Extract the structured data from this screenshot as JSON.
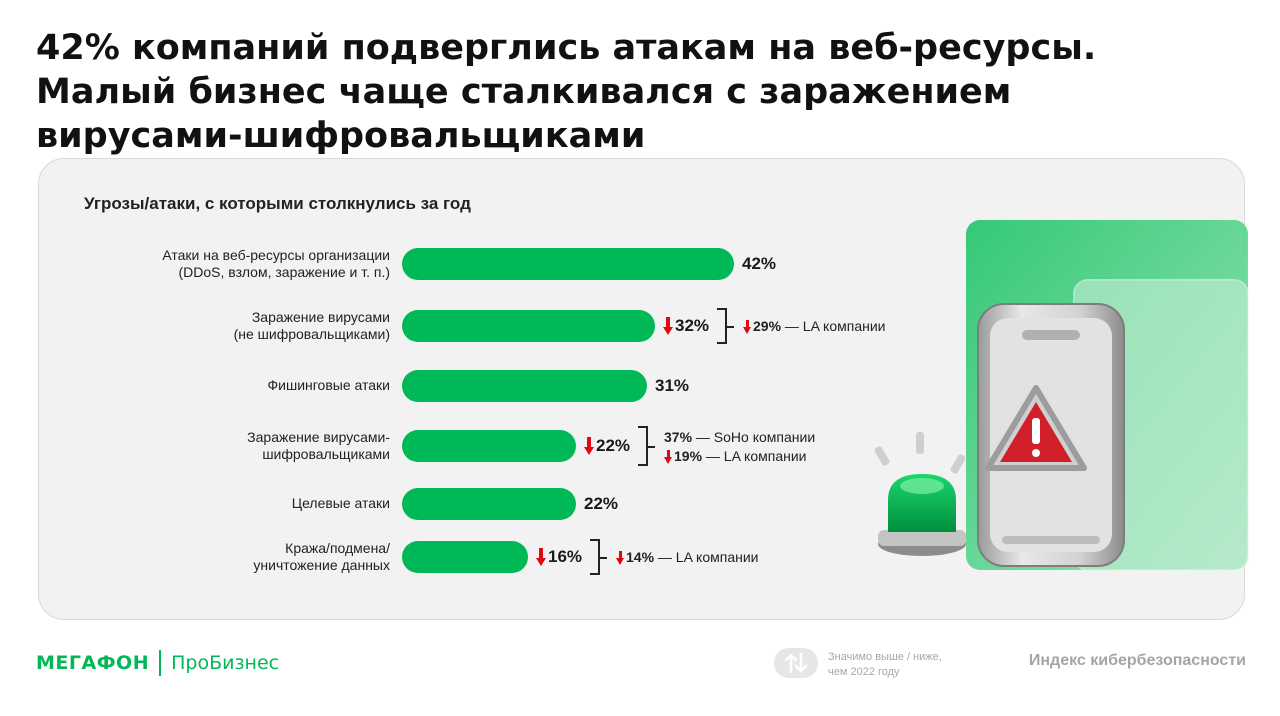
{
  "headline": {
    "line1": "42% компаний подверглись атакам на веб-ресурсы.",
    "line2": "Малый бизнес чаще сталкивался с заражением",
    "line3": "вирусами-шифровальщиками"
  },
  "chart_data": {
    "type": "bar",
    "orientation": "horizontal",
    "title": "Угрозы/атаки, с которыми столкнулись за год",
    "xlim": [
      0,
      42
    ],
    "categories": [
      {
        "line1": "Атаки на веб-ресурсы организации",
        "line2": "(DDoS, взлом, заражение и т. п.)"
      },
      {
        "line1": "Заражение вирусами",
        "line2": "(не шифровальщиками)"
      },
      {
        "line1": "Фишинговые атаки",
        "line2": ""
      },
      {
        "line1": "Заражение вирусами-",
        "line2": "шифровальщиками"
      },
      {
        "line1": "Целевые атаки",
        "line2": ""
      },
      {
        "line1": "Кража/подмена/",
        "line2": "уничтожение данных"
      }
    ],
    "values": [
      42,
      32,
      31,
      22,
      22,
      16
    ],
    "value_labels": [
      "42%",
      "32%",
      "31%",
      "22%",
      "22%",
      "16%"
    ],
    "significantly_lower": [
      false,
      true,
      false,
      true,
      false,
      true
    ],
    "bar_color": "#00b956",
    "down_arrow_color": "#e30613",
    "annotations": [
      {
        "row": 1,
        "items": [
          {
            "value": "29%",
            "text": "— LA компании",
            "down": true
          }
        ]
      },
      {
        "row": 3,
        "items": [
          {
            "value": "37%",
            "text": "— SoHo компании",
            "down": false
          },
          {
            "value": "19%",
            "text": "— LA компании",
            "down": true
          }
        ]
      },
      {
        "row": 5,
        "items": [
          {
            "value": "14%",
            "text": "— LA компании",
            "down": true
          }
        ]
      }
    ]
  },
  "footer": {
    "brand": "МегаФон",
    "product": "ПроБизнес",
    "legend_line1": "Значимо выше / ниже,",
    "legend_line2": "чем 2022 году",
    "index_title": "Индекс кибербезопасности",
    "brand_color": "#00b956"
  },
  "icons": {
    "illustration": "alarm-beacon-phone-warning-icon",
    "legend": "up-down-arrows-icon"
  }
}
